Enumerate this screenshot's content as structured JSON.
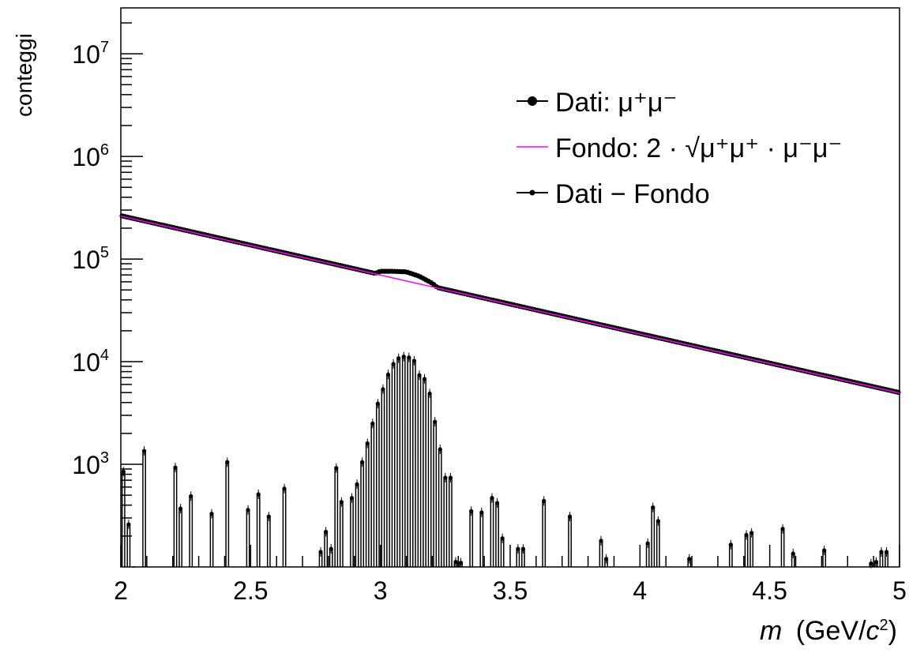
{
  "chart_data": {
    "type": "line",
    "xlabel_main": "m",
    "xlabel_unit": "(GeV/",
    "xlabel_c": "c",
    "xlabel_sup": "2",
    "xlabel_close": ")",
    "ylabel": "conteggi",
    "xlim": [
      2,
      5
    ],
    "ylim": [
      100,
      28000000
    ],
    "yscale": "log",
    "x_ticks": [
      "2",
      "2.5",
      "3",
      "3.5",
      "4",
      "4.5",
      "5"
    ],
    "y_ticks": [
      {
        "base": "10",
        "exp": "3",
        "value": 1000
      },
      {
        "base": "10",
        "exp": "4",
        "value": 10000
      },
      {
        "base": "10",
        "exp": "5",
        "value": 100000
      },
      {
        "base": "10",
        "exp": "6",
        "value": 1000000
      },
      {
        "base": "10",
        "exp": "7",
        "value": 10000000
      }
    ],
    "legend_position": "top-right",
    "legend": [
      {
        "label": "Dati: μ⁺μ⁻",
        "marker": "large-dot"
      },
      {
        "label": "Fondo: 2 · √μ⁺μ⁺ · μ⁻μ⁻",
        "marker": "line"
      },
      {
        "label": "Dati − Fondo",
        "marker": "small-dot"
      }
    ],
    "series": [
      {
        "name": "Dati: μ⁺μ⁻",
        "color": "#000000",
        "model": "exponential_with_peak",
        "bins": 300,
        "x_start": 2.0,
        "y_start": 265000,
        "x_end": 5.0,
        "y_end": 5000,
        "peak": [
          {
            "x": 3.0,
            "y": 76000
          },
          {
            "x": 3.05,
            "y": 76000
          },
          {
            "x": 3.1,
            "y": 75000
          },
          {
            "x": 3.15,
            "y": 68000
          },
          {
            "x": 3.2,
            "y": 58000
          }
        ]
      },
      {
        "name": "Fondo: 2 · √μ⁺μ⁺ · μ⁻μ⁻",
        "color": "#ff00ff",
        "model": "exponential",
        "x_start": 2.0,
        "y_start": 262000,
        "x_end": 5.0,
        "y_end": 4950
      },
      {
        "name": "Dati − Fondo",
        "color": "#000000",
        "model": "histogram",
        "bin_width": 0.01,
        "points": [
          [
            2.01,
            850
          ],
          [
            2.03,
            260
          ],
          [
            2.05,
            0
          ],
          [
            2.09,
            1350
          ],
          [
            2.21,
            930
          ],
          [
            2.23,
            370
          ],
          [
            2.27,
            490
          ],
          [
            2.35,
            330
          ],
          [
            2.41,
            1050
          ],
          [
            2.49,
            360
          ],
          [
            2.53,
            510
          ],
          [
            2.57,
            310
          ],
          [
            2.63,
            580
          ],
          [
            2.77,
            140
          ],
          [
            2.79,
            220
          ],
          [
            2.81,
            150
          ],
          [
            2.83,
            920
          ],
          [
            2.85,
            430
          ],
          [
            2.89,
            470
          ],
          [
            2.91,
            640
          ],
          [
            2.93,
            1050
          ],
          [
            2.95,
            1600
          ],
          [
            2.97,
            2500
          ],
          [
            2.99,
            3900
          ],
          [
            3.01,
            5400
          ],
          [
            3.03,
            7500
          ],
          [
            3.05,
            9500
          ],
          [
            3.07,
            10800
          ],
          [
            3.09,
            11200
          ],
          [
            3.11,
            11000
          ],
          [
            3.13,
            10200
          ],
          [
            3.15,
            7400
          ],
          [
            3.17,
            6800
          ],
          [
            3.19,
            4900
          ],
          [
            3.21,
            2600
          ],
          [
            3.23,
            1400
          ],
          [
            3.25,
            740
          ],
          [
            3.27,
            740
          ],
          [
            3.29,
            112
          ],
          [
            3.31,
            110
          ],
          [
            3.35,
            350
          ],
          [
            3.39,
            340
          ],
          [
            3.43,
            470
          ],
          [
            3.45,
            420
          ],
          [
            3.47,
            190
          ],
          [
            3.53,
            150
          ],
          [
            3.55,
            150
          ],
          [
            3.63,
            440
          ],
          [
            3.73,
            310
          ],
          [
            3.85,
            180
          ],
          [
            3.87,
            120
          ],
          [
            4.03,
            170
          ],
          [
            4.05,
            380
          ],
          [
            4.07,
            280
          ],
          [
            4.19,
            120
          ],
          [
            4.35,
            165
          ],
          [
            4.41,
            205
          ],
          [
            4.43,
            215
          ],
          [
            4.55,
            235
          ],
          [
            4.59,
            135
          ],
          [
            4.71,
            145
          ],
          [
            4.89,
            108
          ],
          [
            4.91,
            112
          ],
          [
            4.93,
            140
          ],
          [
            4.95,
            140
          ]
        ]
      }
    ]
  }
}
